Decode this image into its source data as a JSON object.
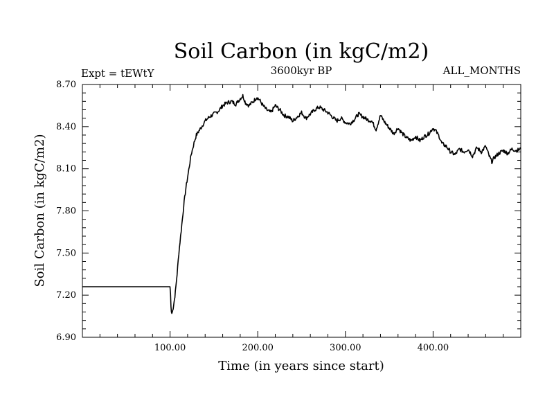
{
  "chart_data": {
    "type": "line",
    "title": "Soil Carbon (in kgC/m2)",
    "subtitle_left": "Expt = tEWtY",
    "subtitle_center": "3600kyr BP",
    "subtitle_right": "ALL_MONTHS",
    "xlabel": "Time (in years since start)",
    "ylabel": "Soil Carbon (in kgC/m2)",
    "xlim": [
      0,
      500
    ],
    "ylim": [
      6.9,
      8.7
    ],
    "x_ticks": [
      100,
      200,
      300,
      400
    ],
    "x_tick_labels": [
      "100.00",
      "200.00",
      "300.00",
      "400.00"
    ],
    "y_ticks": [
      6.9,
      7.2,
      7.5,
      7.8,
      8.1,
      8.4,
      8.7
    ],
    "y_tick_labels": [
      "6.90",
      "7.20",
      "7.50",
      "7.80",
      "8.10",
      "8.40",
      "8.70"
    ],
    "grid": false,
    "series": [
      {
        "name": "Soil Carbon",
        "color": "#000000",
        "x": [
          0,
          99.9,
          100.5,
          101,
          101.5,
          102,
          103,
          104,
          105,
          106,
          108,
          110,
          112,
          114,
          116,
          118,
          120,
          122,
          124,
          126,
          128,
          130,
          133,
          136,
          140,
          145,
          150,
          155,
          160,
          165,
          170,
          175,
          180,
          183,
          186,
          190,
          195,
          199,
          202,
          206,
          210,
          215,
          220,
          225,
          230,
          235,
          240,
          245,
          250,
          255,
          260,
          265,
          270,
          275,
          280,
          285,
          290,
          295,
          300,
          305,
          310,
          315,
          320,
          325,
          330,
          335,
          340,
          345,
          350,
          355,
          360,
          365,
          370,
          375,
          380,
          385,
          390,
          395,
          400,
          403,
          407,
          410,
          415,
          420,
          425,
          430,
          435,
          440,
          445,
          450,
          455,
          460,
          464,
          467,
          470,
          475,
          480,
          485,
          490,
          495,
          500
        ],
        "y": [
          7.26,
          7.26,
          7.21,
          7.12,
          7.08,
          7.07,
          7.09,
          7.13,
          7.17,
          7.22,
          7.35,
          7.5,
          7.62,
          7.74,
          7.86,
          7.96,
          8.04,
          8.12,
          8.2,
          8.25,
          8.3,
          8.34,
          8.37,
          8.4,
          8.44,
          8.47,
          8.49,
          8.51,
          8.55,
          8.57,
          8.58,
          8.56,
          8.6,
          8.62,
          8.57,
          8.55,
          8.58,
          8.61,
          8.59,
          8.55,
          8.52,
          8.5,
          8.55,
          8.52,
          8.48,
          8.47,
          8.44,
          8.47,
          8.5,
          8.46,
          8.49,
          8.52,
          8.54,
          8.52,
          8.5,
          8.47,
          8.44,
          8.46,
          8.43,
          8.42,
          8.45,
          8.49,
          8.47,
          8.45,
          8.44,
          8.38,
          8.48,
          8.43,
          8.39,
          8.35,
          8.39,
          8.35,
          8.32,
          8.3,
          8.33,
          8.3,
          8.33,
          8.35,
          8.39,
          8.37,
          8.33,
          8.28,
          8.26,
          8.22,
          8.2,
          8.24,
          8.22,
          8.24,
          8.19,
          8.25,
          8.22,
          8.26,
          8.19,
          8.15,
          8.18,
          8.21,
          8.23,
          8.21,
          8.24,
          8.23,
          8.24
        ]
      }
    ]
  }
}
